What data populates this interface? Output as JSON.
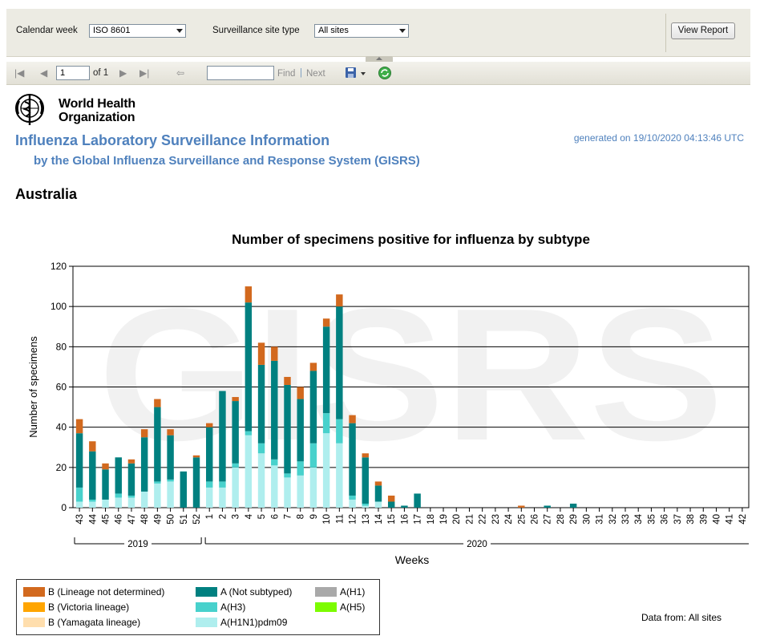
{
  "parameters": {
    "calendar_week_label": "Calendar week",
    "calendar_week_value": "ISO 8601",
    "site_type_label": "Surveillance site type",
    "site_type_value": "All sites",
    "view_report_label": "View Report"
  },
  "toolbar": {
    "page_value": "1",
    "page_of": "of 1",
    "find_label": "Find",
    "separator": "|",
    "next_label": "Next"
  },
  "header": {
    "org_line1": "World Health",
    "org_line2": "Organization",
    "title": "Influenza Laboratory Surveillance Information",
    "subtitle": "by the Global Influenza Surveillance and Response System (GISRS)",
    "generated": "generated on 19/10/2020 04:13:46 UTC",
    "country": "Australia"
  },
  "watermark": "GISRS",
  "legend": [
    {
      "label": "B (Lineage not determined)",
      "color": "#d2691e"
    },
    {
      "label": "B (Victoria lineage)",
      "color": "#ffa500"
    },
    {
      "label": "B (Yamagata lineage)",
      "color": "#ffdead"
    },
    {
      "label": "A (Not subtyped)",
      "color": "#008080"
    },
    {
      "label": "A(H3)",
      "color": "#48d1cc"
    },
    {
      "label": "A(H1N1)pdm09",
      "color": "#afeeee"
    },
    {
      "label": "A(H1)",
      "color": "#a9a9a9"
    },
    {
      "label": "A(H5)",
      "color": "#7cfc00"
    }
  ],
  "data_source": "Data from: All sites",
  "chart_data": {
    "type": "bar",
    "stacked": true,
    "title": "Number of specimens positive for influenza by subtype",
    "xlabel": "Weeks",
    "ylabel": "Number of specimens",
    "ylim": [
      0,
      120
    ],
    "yticks": [
      0,
      20,
      40,
      60,
      80,
      100,
      120
    ],
    "grid": true,
    "legend_position": "bottom-left",
    "categories": [
      "43",
      "44",
      "45",
      "46",
      "47",
      "48",
      "49",
      "50",
      "51",
      "52",
      "1",
      "2",
      "3",
      "4",
      "5",
      "6",
      "7",
      "8",
      "9",
      "10",
      "11",
      "12",
      "13",
      "14",
      "15",
      "16",
      "17",
      "18",
      "19",
      "20",
      "21",
      "22",
      "23",
      "24",
      "25",
      "26",
      "27",
      "28",
      "29",
      "30",
      "31",
      "32",
      "33",
      "34",
      "35",
      "36",
      "37",
      "38",
      "39",
      "40",
      "41",
      "42"
    ],
    "year_groups": [
      {
        "label": "2019",
        "from": "43",
        "to": "52"
      },
      {
        "label": "2020",
        "from": "1",
        "to": "42"
      }
    ],
    "series": [
      {
        "name": "A(H1N1)pdm09",
        "color": "#afeeee",
        "values": [
          3,
          3,
          4,
          5,
          5,
          8,
          12,
          13,
          0,
          0,
          10,
          10,
          20,
          36,
          27,
          21,
          15,
          16,
          20,
          37,
          32,
          4,
          1,
          3,
          0,
          0,
          0,
          0,
          0,
          0,
          0,
          0,
          0,
          0,
          0,
          0,
          0,
          0,
          0,
          0,
          0,
          0,
          0,
          0,
          0,
          0,
          0,
          0,
          0,
          0,
          0,
          0
        ]
      },
      {
        "name": "A(H3)",
        "color": "#48d1cc",
        "values": [
          7,
          1,
          0,
          2,
          1,
          0,
          1,
          1,
          0,
          0,
          3,
          3,
          2,
          2,
          5,
          3,
          2,
          7,
          12,
          10,
          12,
          2,
          1,
          0,
          0,
          0,
          0,
          0,
          0,
          0,
          0,
          0,
          0,
          0,
          0,
          0,
          0,
          0,
          0,
          0,
          0,
          0,
          0,
          0,
          0,
          0,
          0,
          0,
          0,
          0,
          0,
          0
        ]
      },
      {
        "name": "A (Not subtyped)",
        "color": "#008080",
        "values": [
          27,
          24,
          15,
          18,
          16,
          27,
          37,
          22,
          18,
          25,
          27,
          45,
          31,
          64,
          39,
          49,
          44,
          31,
          36,
          43,
          56,
          36,
          23,
          8,
          3,
          1,
          7,
          0,
          0,
          0,
          0,
          0,
          0,
          0,
          0,
          0,
          1,
          0,
          2,
          0,
          0,
          0,
          0,
          0,
          0,
          0,
          0,
          0,
          0,
          0,
          0,
          0
        ]
      },
      {
        "name": "B (Lineage not determined)",
        "color": "#d2691e",
        "values": [
          7,
          5,
          3,
          0,
          2,
          4,
          4,
          3,
          0,
          1,
          2,
          0,
          2,
          8,
          11,
          7,
          4,
          6,
          4,
          4,
          6,
          4,
          2,
          2,
          3,
          0,
          0,
          0,
          0,
          0,
          0,
          0,
          0,
          0,
          1,
          0,
          0,
          0,
          0,
          0,
          0,
          0,
          0,
          0,
          0,
          0,
          0,
          0,
          0,
          0,
          0,
          0
        ]
      }
    ]
  }
}
